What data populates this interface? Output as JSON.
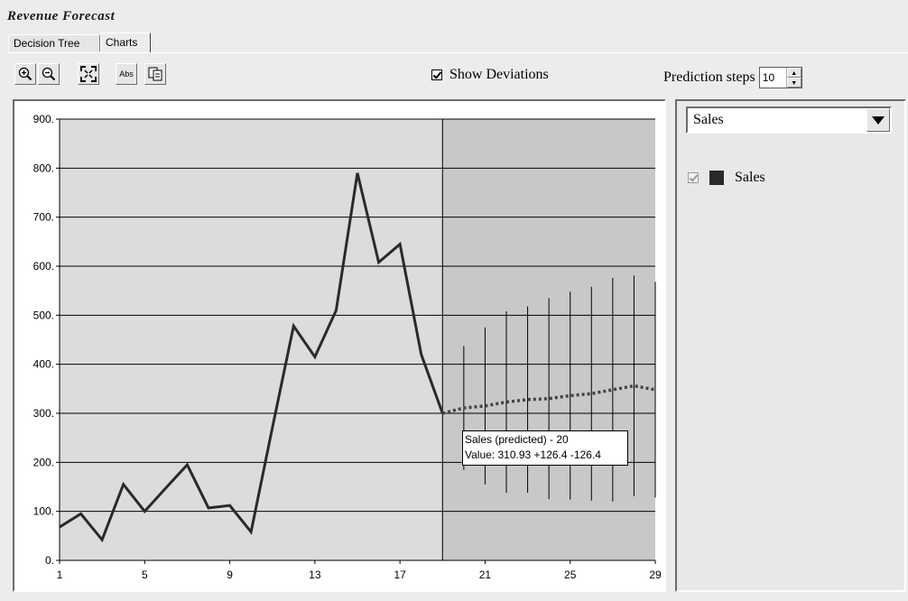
{
  "title": "Revenue Forecast",
  "tabs": [
    {
      "label": "Decision Tree",
      "active": false
    },
    {
      "label": "Charts",
      "active": true
    }
  ],
  "toolbar": {
    "zoom_in": "zoom-in-icon",
    "zoom_out": "zoom-out-icon",
    "fit": "fit-icon",
    "abs_label": "Abs",
    "copy": "copy-icon",
    "show_deviations_label": "Show Deviations",
    "show_deviations_checked": true,
    "prediction_steps_label": "Prediction steps",
    "prediction_steps_value": "10"
  },
  "side": {
    "dropdown_value": "Sales",
    "legend_label": "Sales",
    "legend_checked": true
  },
  "tooltip": {
    "line1": "Sales (predicted) - 20",
    "line2": "Value: 310.93 +126.4 -126.4"
  },
  "colors": {
    "line": "#2a2a2a",
    "plot_bg": "#dcdcdc",
    "forecast_bg": "#c8c8c8",
    "grid": "#000000"
  },
  "chart_data": {
    "type": "line",
    "title": "",
    "ylim": [
      0,
      900
    ],
    "xlim": [
      1,
      29
    ],
    "y_ticks": [
      "0.",
      "100.",
      "200.",
      "300.",
      "400.",
      "500.",
      "600.",
      "700.",
      "800.",
      "900."
    ],
    "x_ticks": [
      "1",
      "5",
      "9",
      "13",
      "17",
      "21",
      "25",
      "29"
    ],
    "actual_x": [
      1,
      2,
      3,
      4,
      5,
      6,
      7,
      8,
      9,
      10,
      11,
      12,
      13,
      14,
      15,
      16,
      17,
      18,
      19
    ],
    "actual_y": [
      68,
      95,
      42,
      155,
      100,
      148,
      195,
      107,
      112,
      58,
      270,
      478,
      415,
      510,
      790,
      608,
      645,
      420,
      300
    ],
    "forecast_start": 19,
    "predicted_x": [
      19,
      20,
      21,
      22,
      23,
      24,
      25,
      26,
      27,
      28,
      29
    ],
    "predicted_y": [
      300,
      310.93,
      315,
      323,
      328,
      330,
      336,
      340,
      348,
      356,
      348
    ],
    "deviation": [
      0,
      126.4,
      160,
      185,
      190,
      205,
      212,
      218,
      228,
      225,
      220
    ]
  }
}
